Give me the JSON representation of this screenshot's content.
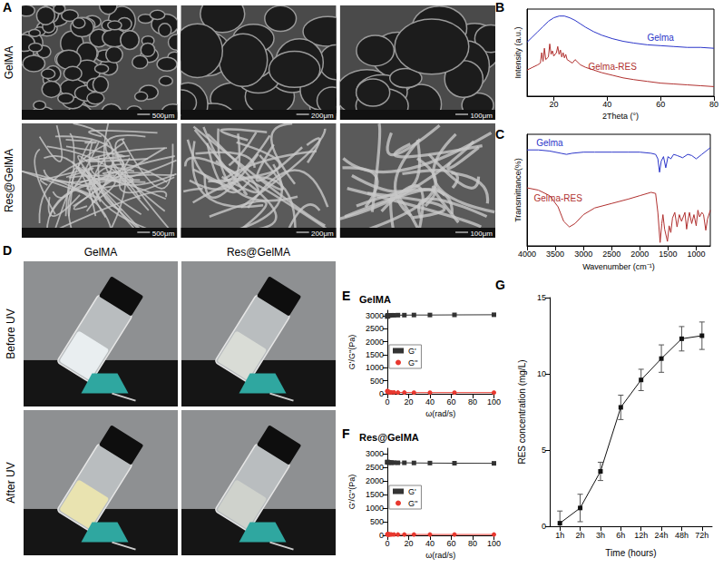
{
  "sem_images": {
    "panel": "A",
    "rows": [
      "GelMA",
      "Res@GelMA"
    ],
    "scale_bars": [
      "500μm",
      "200μm",
      "100μm"
    ]
  },
  "photos": {
    "panel": "D",
    "columns": [
      "GelMA",
      "Res@GelMA"
    ],
    "rows": [
      "Before UV",
      "After UV"
    ]
  },
  "chart_data": [
    {
      "panel": "B",
      "type": "line",
      "x_label": "2Theta (°)",
      "y_label": "Intensity (a.u.)",
      "xlim": [
        10,
        80
      ],
      "xticks": [
        20,
        40,
        60,
        80
      ],
      "ylim": [
        0,
        100
      ],
      "tick_labels": "x",
      "series": [
        {
          "name": "Gelma",
          "color": "#2b35c9",
          "x": [
            10,
            12,
            14,
            16,
            18,
            20,
            22,
            24,
            26,
            28,
            30,
            32,
            35,
            38,
            42,
            46,
            50,
            55,
            60,
            65,
            70,
            75,
            80
          ],
          "values": [
            62,
            68,
            74,
            80,
            86,
            90,
            92,
            92,
            90,
            87,
            83,
            79,
            74,
            70,
            66,
            63,
            61,
            59,
            58,
            57,
            56,
            56,
            55
          ]
        },
        {
          "name": "Gelma-RES",
          "color": "#b0302f",
          "x": [
            10,
            12,
            14,
            15,
            15.5,
            16,
            16.5,
            17,
            18,
            18.5,
            19,
            19.5,
            20,
            21,
            21.5,
            22,
            22.5,
            23,
            23.5,
            24,
            24.5,
            25,
            26,
            27,
            28,
            30,
            32,
            35,
            38,
            42,
            46,
            50,
            55,
            60,
            65,
            70,
            75,
            80
          ],
          "values": [
            30,
            33,
            36,
            38,
            50,
            40,
            55,
            42,
            45,
            60,
            48,
            52,
            46,
            50,
            57,
            48,
            53,
            45,
            50,
            44,
            48,
            42,
            40,
            38,
            42,
            36,
            33,
            30,
            27,
            24,
            21,
            19,
            17,
            15,
            14,
            13,
            12,
            11
          ]
        }
      ]
    },
    {
      "panel": "C",
      "type": "line",
      "x_label": "Wavenumber (cm⁻¹)",
      "y_label": "Transmittance(%)",
      "xlim": [
        4000,
        750
      ],
      "xticks": [
        4000,
        3500,
        3000,
        2500,
        2000,
        1500,
        1000
      ],
      "ylim": [
        0,
        100
      ],
      "tick_labels": "x",
      "series": [
        {
          "name": "Gelma",
          "color": "#2b35c9",
          "x": [
            4000,
            3800,
            3600,
            3400,
            3300,
            3200,
            3000,
            2800,
            2500,
            2200,
            2000,
            1800,
            1720,
            1680,
            1650,
            1620,
            1580,
            1540,
            1500,
            1450,
            1400,
            1340,
            1240,
            1150,
            1080,
            1000,
            900,
            800,
            750
          ],
          "values": [
            86,
            86,
            85,
            83,
            82,
            83,
            84,
            84,
            84,
            84,
            84,
            83,
            82,
            78,
            66,
            76,
            80,
            70,
            80,
            78,
            82,
            81,
            79,
            82,
            81,
            78,
            82,
            86,
            88
          ]
        },
        {
          "name": "Gelma-RES",
          "color": "#b0302f",
          "x": [
            4000,
            3800,
            3600,
            3450,
            3350,
            3250,
            3150,
            3000,
            2800,
            2500,
            2200,
            2000,
            1800,
            1720,
            1680,
            1640,
            1610,
            1590,
            1560,
            1510,
            1480,
            1450,
            1420,
            1380,
            1340,
            1300,
            1260,
            1200,
            1170,
            1150,
            1120,
            1080,
            1040,
            1000,
            970,
            940,
            900,
            870,
            830,
            800,
            750
          ],
          "values": [
            52,
            50,
            45,
            35,
            22,
            17,
            20,
            28,
            34,
            38,
            42,
            45,
            48,
            47,
            30,
            3,
            20,
            28,
            15,
            4,
            18,
            12,
            25,
            30,
            17,
            28,
            22,
            30,
            15,
            22,
            30,
            20,
            28,
            18,
            32,
            26,
            30,
            28,
            14,
            24,
            32
          ]
        }
      ]
    },
    {
      "panel": "E",
      "type": "line",
      "title": "GelMA",
      "x_label": "ω(rad/s)",
      "y_label": "G'/G''(Pa)",
      "x": [
        0.1,
        0.16,
        0.25,
        0.4,
        0.63,
        1,
        1.6,
        2.5,
        4,
        6.3,
        10,
        16,
        25,
        40,
        63,
        100
      ],
      "xlim": [
        0,
        100
      ],
      "xticks": [
        0,
        20,
        40,
        60,
        80,
        100
      ],
      "ylim": [
        0,
        3200
      ],
      "yticks": [
        0,
        500,
        1000,
        1500,
        2000,
        2500,
        3000
      ],
      "legend": "left",
      "series": [
        {
          "name": "G'",
          "color": "#333333",
          "marker": "square",
          "values": [
            2960,
            2980,
            2990,
            2995,
            3000,
            3000,
            3005,
            3005,
            3010,
            3010,
            3015,
            3015,
            3020,
            3020,
            3025,
            3030
          ]
        },
        {
          "name": "G''",
          "color": "#e8382f",
          "marker": "circle",
          "values": [
            110,
            95,
            85,
            80,
            75,
            70,
            65,
            60,
            55,
            55,
            50,
            50,
            45,
            45,
            45,
            45
          ]
        }
      ]
    },
    {
      "panel": "F",
      "type": "line",
      "title": "Res@GelMA",
      "x_label": "ω(rad/s)",
      "y_label": "G'/G''(Pa)",
      "x": [
        0.1,
        0.16,
        0.25,
        0.4,
        0.63,
        1,
        1.6,
        2.5,
        4,
        6.3,
        10,
        16,
        25,
        40,
        63,
        100
      ],
      "xlim": [
        0,
        100
      ],
      "xticks": [
        0,
        20,
        40,
        60,
        80,
        100
      ],
      "ylim": [
        0,
        3200
      ],
      "yticks": [
        0,
        500,
        1000,
        1500,
        2000,
        2500,
        3000
      ],
      "legend": "left",
      "series": [
        {
          "name": "G'",
          "color": "#333333",
          "marker": "square",
          "values": [
            2690,
            2690,
            2685,
            2685,
            2680,
            2680,
            2675,
            2675,
            2670,
            2670,
            2665,
            2665,
            2660,
            2655,
            2650,
            2645
          ]
        },
        {
          "name": "G''",
          "color": "#e8382f",
          "marker": "circle",
          "values": [
            40,
            38,
            36,
            35,
            34,
            33,
            32,
            32,
            31,
            31,
            30,
            30,
            30,
            30,
            30,
            30
          ]
        }
      ]
    },
    {
      "panel": "G",
      "type": "line",
      "x_label": "Time (hours)",
      "y_label": "RES concentration (mg/L)",
      "categories": [
        "1h",
        "2h",
        "3h",
        "6h",
        "12h",
        "24h",
        "48h",
        "72h"
      ],
      "values": [
        0.2,
        1.2,
        3.6,
        7.8,
        9.6,
        11.0,
        12.3,
        12.5
      ],
      "errors": [
        0.8,
        0.9,
        0.6,
        0.8,
        0.7,
        0.9,
        0.8,
        0.9
      ],
      "color": "#111111",
      "marker": "square",
      "ylim": [
        0,
        15
      ],
      "yticks": [
        0,
        5,
        10,
        15
      ]
    }
  ]
}
